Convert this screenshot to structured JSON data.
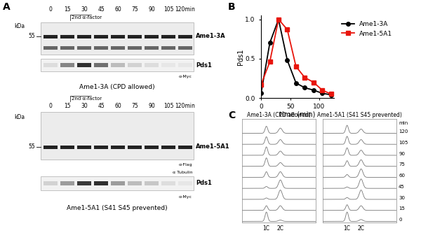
{
  "chart_data": {
    "type": "line",
    "x": [
      0,
      15,
      30,
      45,
      60,
      75,
      90,
      105,
      120
    ],
    "xlim": [
      0,
      125
    ],
    "xticks": [
      0,
      50,
      100
    ],
    "ylim": [
      0,
      1.05
    ],
    "yticks": [
      {
        "value": 0,
        "label": "0.0"
      },
      {
        "value": 0.5,
        "label": "0.5"
      },
      {
        "value": 1,
        "label": "1.0"
      }
    ],
    "x_label": "time (min)",
    "y_label": "Pds1",
    "legend": "upper left",
    "series": [
      {
        "name": "Ame1-3A",
        "color": "#000000",
        "marker": "circle",
        "line_style": "solid",
        "values": [
          0.06,
          0.7,
          1.0,
          0.48,
          0.19,
          0.13,
          0.1,
          0.06,
          0.04
        ]
      },
      {
        "name": "Ame1-5A1",
        "color": "#e8150c",
        "marker": "square",
        "line_style": "solid",
        "values": [
          0.17,
          0.46,
          1.0,
          0.87,
          0.4,
          0.26,
          0.2,
          0.1,
          0.05
        ]
      }
    ]
  },
  "panel_labels": [
    "A",
    "B",
    "C"
  ],
  "panel_A": {
    "lane_times": [
      "0",
      "15",
      "30",
      "45",
      "60",
      "75",
      "90",
      "105",
      "120min"
    ],
    "treatment": "2nd α-factor",
    "kDa_label": "kDa",
    "marker_kDa": 55,
    "blots": [
      {
        "caption": "Ame1-3A (CPD allowed)",
        "bands": [
          {
            "label": "Ame1-3A"
          },
          {
            "label": "Pds1",
            "antibody": "α-Myc",
            "intensity": [
              0.1,
              0.5,
              0.9,
              0.6,
              0.25,
              0.15,
              0.1,
              0.05,
              0.05
            ]
          }
        ]
      },
      {
        "caption": "Ame1-5A1 (S41 S45 prevented)",
        "bands": [
          {
            "label": "Ame1-5A1",
            "antibody": "α-Flag"
          },
          {
            "label": "Pds1",
            "antibody": "α-Myc",
            "loading_note": "α Tubulin",
            "intensity": [
              0.15,
              0.4,
              0.85,
              0.9,
              0.4,
              0.25,
              0.2,
              0.1,
              0.05
            ]
          }
        ]
      }
    ]
  },
  "panel_C": {
    "times": [
      0,
      15,
      30,
      45,
      60,
      75,
      90,
      105,
      120
    ],
    "time_unit": "min",
    "x_labels": [
      "1C",
      "2C"
    ],
    "panels": [
      {
        "title": "Ame1-3A (CPD allowed)",
        "peaks": [
          [
            1.0,
            0.15
          ],
          [
            0.5,
            0.5
          ],
          [
            0.15,
            1.0
          ],
          [
            0.2,
            0.9
          ],
          [
            0.6,
            0.6
          ],
          [
            0.9,
            0.4
          ],
          [
            0.9,
            0.45
          ],
          [
            0.8,
            0.5
          ],
          [
            0.75,
            0.55
          ]
        ]
      },
      {
        "title": "Ame1-5A1 (S41 S45 prevented)",
        "peaks": [
          [
            1.0,
            0.2
          ],
          [
            0.6,
            0.5
          ],
          [
            0.2,
            1.0
          ],
          [
            0.15,
            1.0
          ],
          [
            0.3,
            0.9
          ],
          [
            0.6,
            0.7
          ],
          [
            0.8,
            0.55
          ],
          [
            0.85,
            0.5
          ],
          [
            0.85,
            0.45
          ]
        ]
      }
    ]
  }
}
